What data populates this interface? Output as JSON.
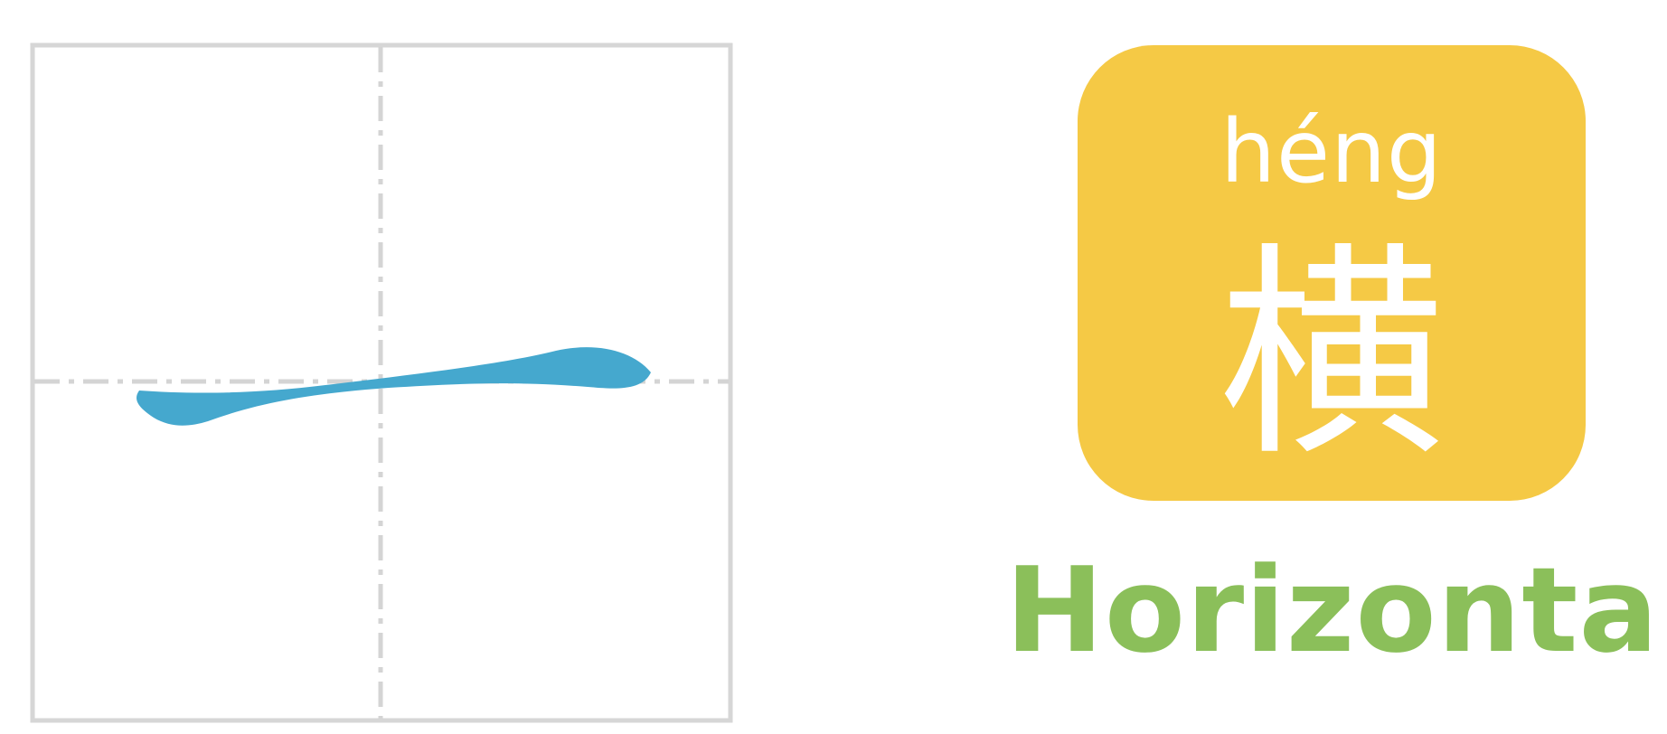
{
  "stroke_card": {
    "pinyin": "héng",
    "character": "横",
    "meaning": "Horizontal"
  },
  "colors": {
    "grid_border": "#d6d6d6",
    "guide_line": "#d4d4d4",
    "stroke": "#45a8ce",
    "card_background": "#f5c945",
    "card_text": "#ffffff",
    "label_text": "#8bbf5a"
  },
  "icons": {
    "stroke_demo": "horizontal-stroke-icon"
  }
}
